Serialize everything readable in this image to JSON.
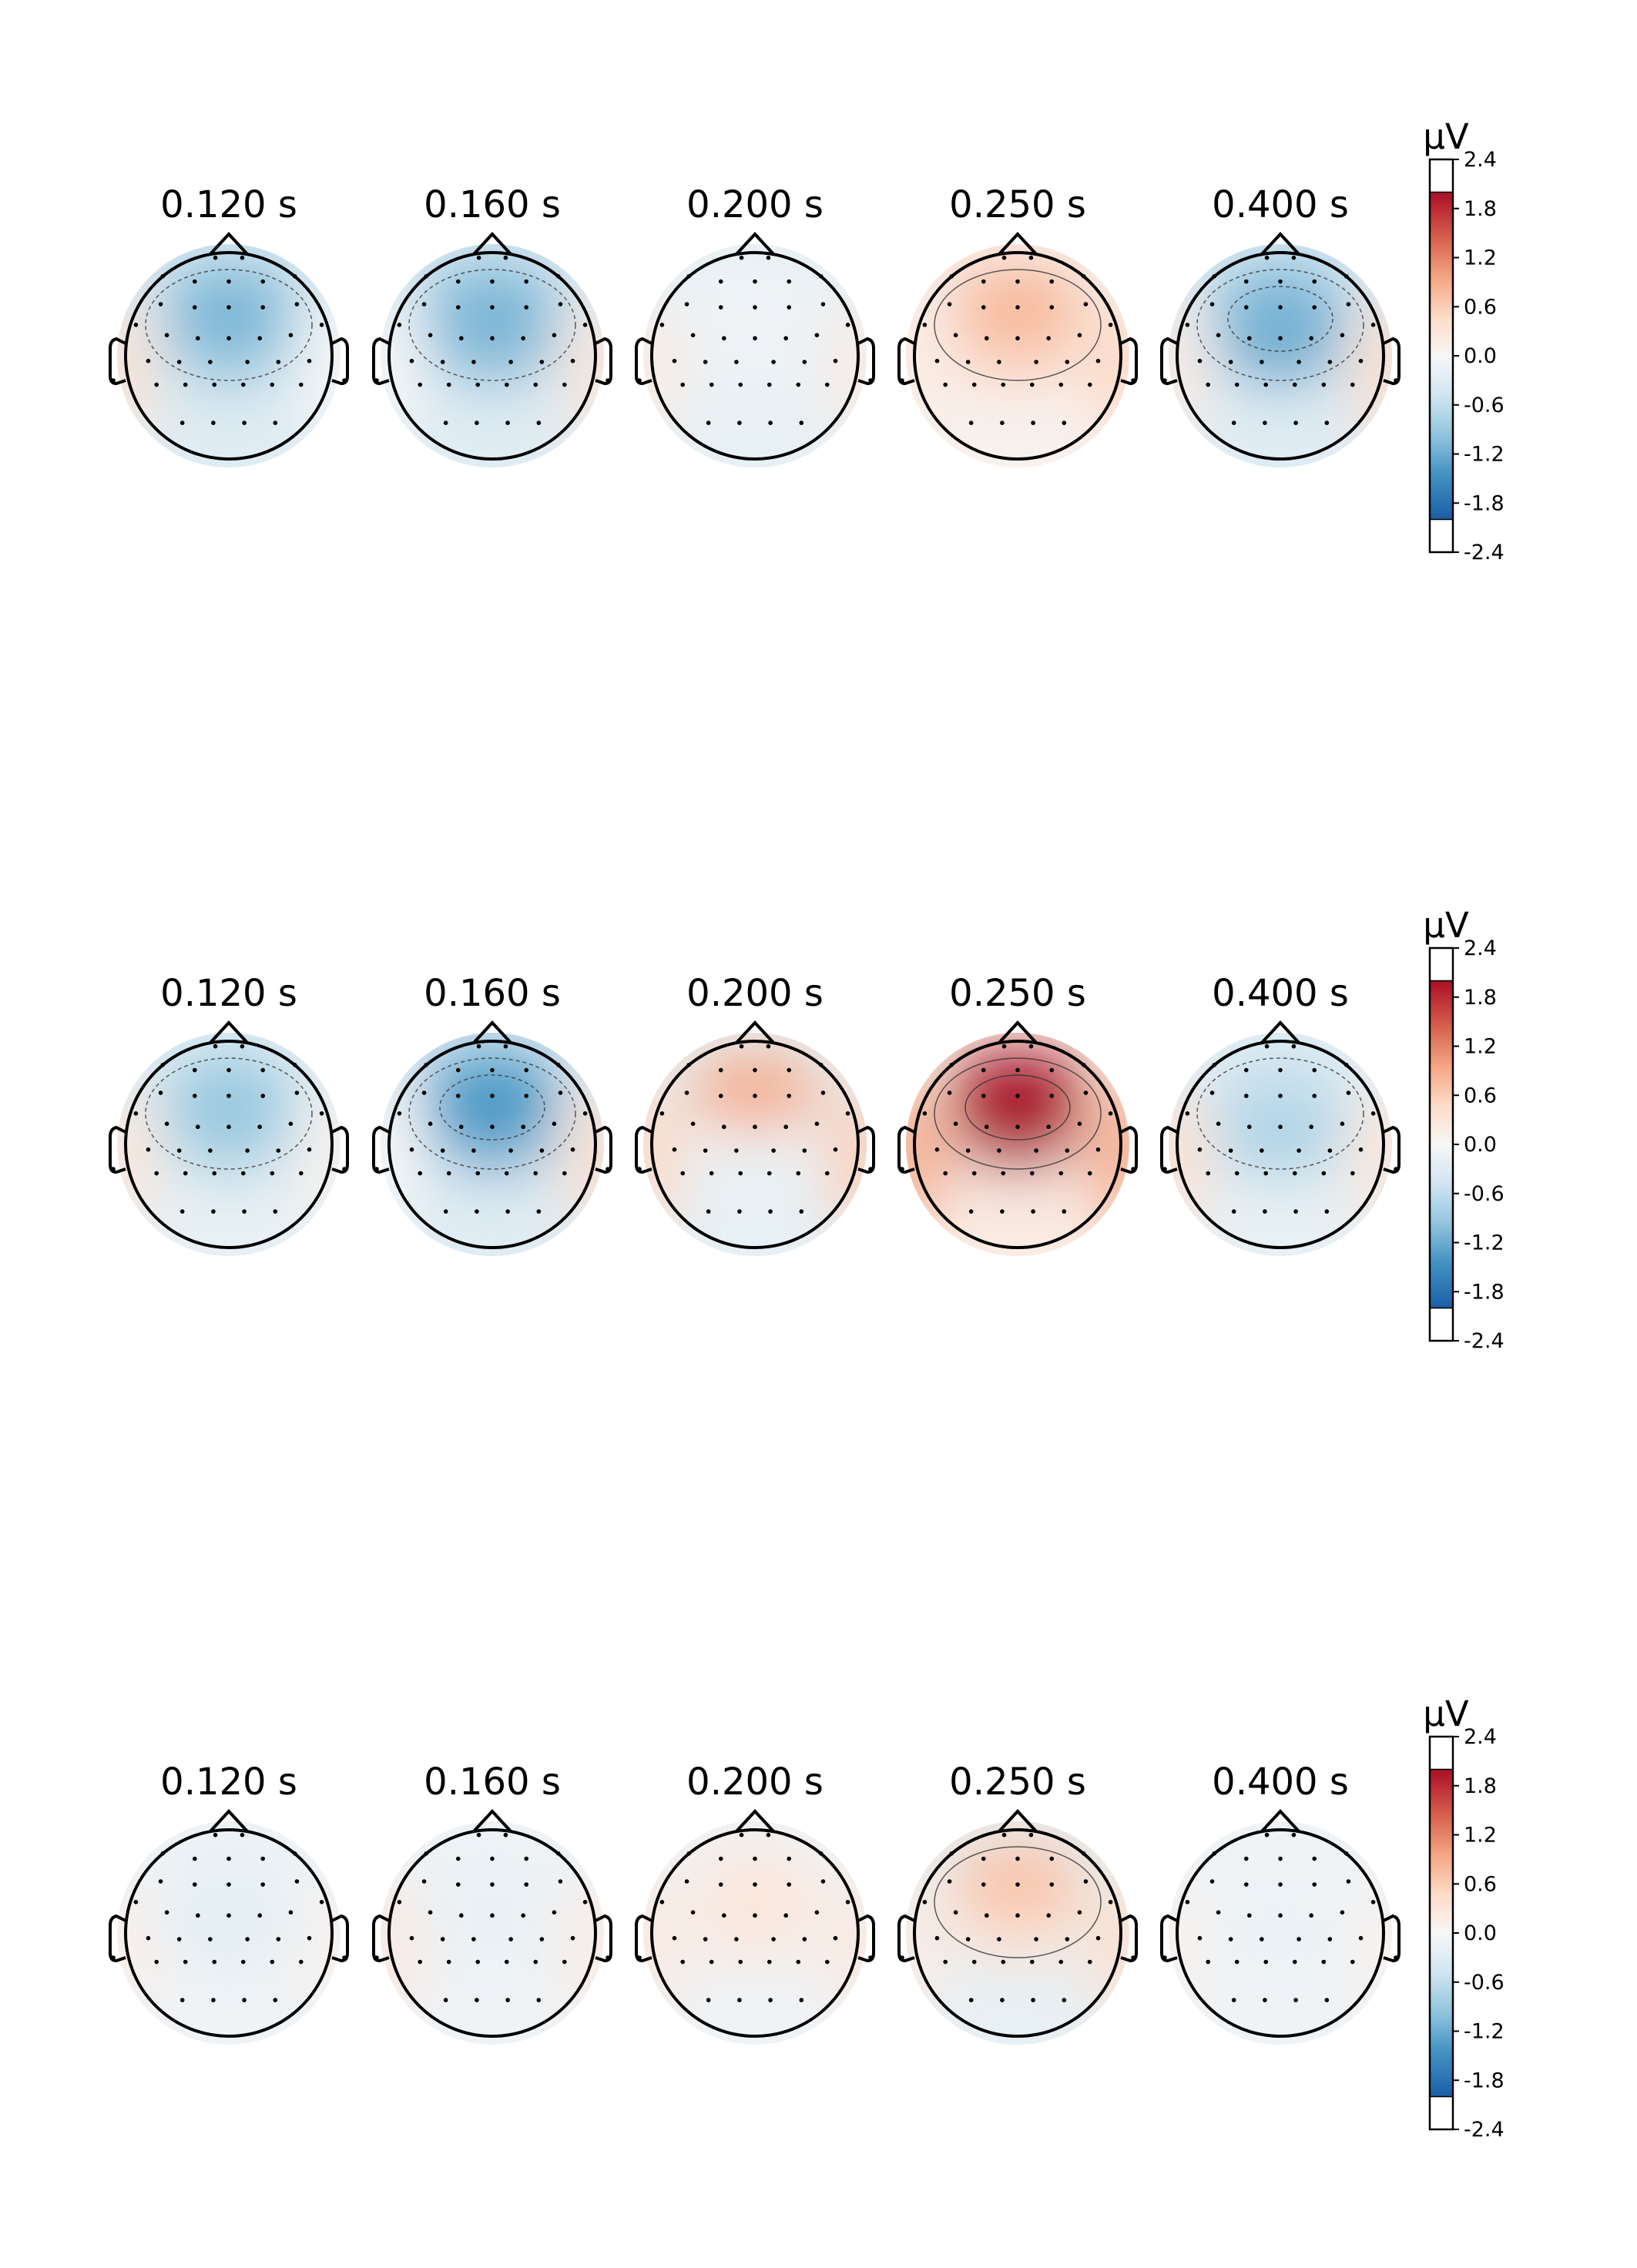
{
  "chart_data": {
    "type": "heatmap",
    "subtype": "topographic-map",
    "unit": "µV",
    "colormap": "RdBu_r",
    "colorbar": {
      "ticks": [
        "2.4",
        "1.8",
        "1.2",
        "0.6",
        "0.0",
        "-0.6",
        "-1.2",
        "-1.8",
        "-2.4"
      ],
      "range": [
        -2.4,
        2.4
      ],
      "clip": [
        -2.0,
        2.0
      ]
    },
    "rows": [
      {
        "maps": [
          {
            "time": "0.120 s",
            "frontal": -1.1,
            "central": -1.0,
            "posterior": -0.3,
            "left_temporal": 0.35,
            "right_temporal": 0.0
          },
          {
            "time": "0.160 s",
            "frontal": -1.1,
            "central": -1.1,
            "posterior": -0.3,
            "left_temporal": 0.0,
            "right_temporal": 0.3
          },
          {
            "time": "0.200 s",
            "frontal": -0.1,
            "central": -0.1,
            "posterior": -0.2,
            "left_temporal": 0.2,
            "right_temporal": 0.2
          },
          {
            "time": "0.250 s",
            "frontal": 0.8,
            "central": 0.6,
            "posterior": 0.1,
            "left_temporal": 0.2,
            "right_temporal": 0.5
          },
          {
            "time": "0.400 s",
            "frontal": -1.1,
            "central": -1.3,
            "posterior": -0.3,
            "left_temporal": 0.2,
            "right_temporal": 0.4
          }
        ]
      },
      {
        "maps": [
          {
            "time": "0.120 s",
            "frontal": -0.9,
            "central": -0.9,
            "posterior": -0.2,
            "left_temporal": 0.3,
            "right_temporal": 0.1
          },
          {
            "time": "0.160 s",
            "frontal": -1.4,
            "central": -1.3,
            "posterior": -0.3,
            "left_temporal": 0.0,
            "right_temporal": 0.4
          },
          {
            "time": "0.200 s",
            "frontal": 0.9,
            "central": -0.1,
            "posterior": -0.2,
            "left_temporal": 0.5,
            "right_temporal": 0.6
          },
          {
            "time": "0.250 s",
            "frontal": 2.1,
            "central": 1.9,
            "posterior": 0.2,
            "left_temporal": 0.9,
            "right_temporal": 0.9
          },
          {
            "time": "0.400 s",
            "frontal": -0.6,
            "central": -0.9,
            "posterior": -0.2,
            "left_temporal": 0.4,
            "right_temporal": 0.3
          }
        ]
      },
      {
        "maps": [
          {
            "time": "0.120 s",
            "frontal": -0.2,
            "central": -0.3,
            "posterior": -0.1,
            "left_temporal": 0.15,
            "right_temporal": 0.1
          },
          {
            "time": "0.160 s",
            "frontal": -0.15,
            "central": -0.2,
            "posterior": -0.1,
            "left_temporal": 0.25,
            "right_temporal": 0.2
          },
          {
            "time": "0.200 s",
            "frontal": 0.25,
            "central": 0.3,
            "posterior": -0.1,
            "left_temporal": 0.25,
            "right_temporal": 0.25
          },
          {
            "time": "0.250 s",
            "frontal": 0.7,
            "central": 0.4,
            "posterior": -0.2,
            "left_temporal": 0.2,
            "right_temporal": 0.4
          },
          {
            "time": "0.400 s",
            "frontal": -0.1,
            "central": -0.2,
            "posterior": -0.1,
            "left_temporal": 0.1,
            "right_temporal": 0.1
          }
        ]
      }
    ]
  }
}
